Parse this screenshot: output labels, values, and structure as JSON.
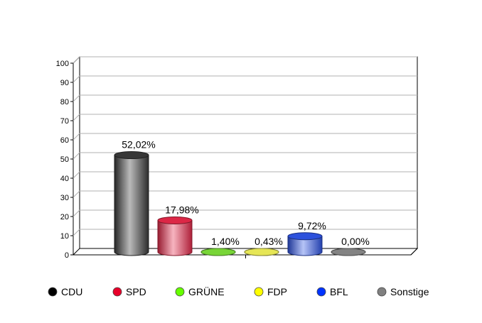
{
  "chart_data": {
    "type": "bar",
    "categories": [
      "CDU",
      "SPD",
      "GRÜNE",
      "FDP",
      "BFL",
      "Sonstige"
    ],
    "values": [
      52.02,
      17.98,
      1.4,
      0.43,
      9.72,
      0.0
    ],
    "value_labels": [
      "52,02%",
      "17,98%",
      "1,40%",
      "0,43%",
      "9,72%",
      "0,00%"
    ],
    "colors": [
      "#3a3a3a",
      "#e8294a",
      "#7ee03a",
      "#f2f25a",
      "#2f55e8",
      "#8a8a8a"
    ],
    "title": "",
    "xlabel": "",
    "ylabel": "",
    "ylim": [
      0,
      100
    ],
    "yticks": [
      "0",
      "10",
      "20",
      "30",
      "40",
      "50",
      "60",
      "70",
      "80",
      "90",
      "100"
    ],
    "grid": true,
    "legend_position": "bottom"
  }
}
